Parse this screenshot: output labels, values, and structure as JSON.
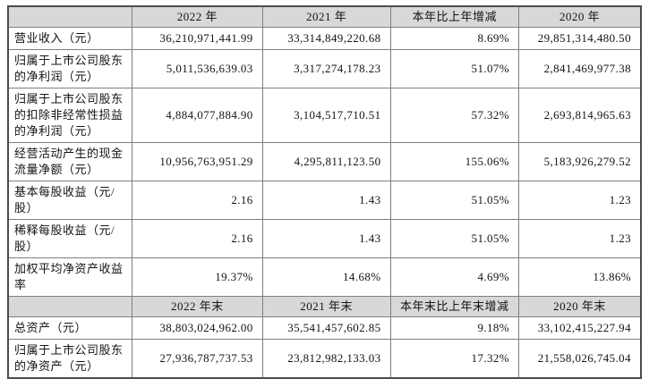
{
  "colors": {
    "header_bg": "#d8d8d8",
    "border_inner": "#7f7f7f",
    "border_outer": "#4c4c4c",
    "text": "#141414",
    "page_bg": "#ffffff"
  },
  "table": {
    "sections": [
      {
        "header": [
          "",
          "2022 年",
          "2021 年",
          "本年比上年增减",
          "2020 年"
        ],
        "rows": [
          {
            "label": "营业收入（元）",
            "values": [
              "36,210,971,441.99",
              "33,314,849,220.68",
              "8.69%",
              "29,851,314,480.50"
            ]
          },
          {
            "label": "归属于上市公司股东的净利润（元）",
            "values": [
              "5,011,536,639.03",
              "3,317,274,178.23",
              "51.07%",
              "2,841,469,977.38"
            ]
          },
          {
            "label": "归属于上市公司股东的扣除非经常性损益的净利润（元）",
            "values": [
              "4,884,077,884.90",
              "3,104,517,710.51",
              "57.32%",
              "2,693,814,965.63"
            ]
          },
          {
            "label": "经营活动产生的现金流量净额（元）",
            "values": [
              "10,956,763,951.29",
              "4,295,811,123.50",
              "155.06%",
              "5,183,926,279.52"
            ]
          },
          {
            "label": "基本每股收益（元/股）",
            "values": [
              "2.16",
              "1.43",
              "51.05%",
              "1.23"
            ]
          },
          {
            "label": "稀释每股收益（元/股）",
            "values": [
              "2.16",
              "1.43",
              "51.05%",
              "1.23"
            ]
          },
          {
            "label": "加权平均净资产收益率",
            "values": [
              "19.37%",
              "14.68%",
              "4.69%",
              "13.86%"
            ]
          }
        ]
      },
      {
        "header": [
          "",
          "2022 年末",
          "2021 年末",
          "本年末比上年末增减",
          "2020 年末"
        ],
        "rows": [
          {
            "label": "总资产（元）",
            "values": [
              "38,803,024,962.00",
              "35,541,457,602.85",
              "9.18%",
              "33,102,415,227.94"
            ]
          },
          {
            "label": "归属于上市公司股东的净资产（元）",
            "values": [
              "27,936,787,737.53",
              "23,812,982,133.03",
              "17.32%",
              "21,558,026,745.04"
            ]
          }
        ]
      }
    ]
  }
}
